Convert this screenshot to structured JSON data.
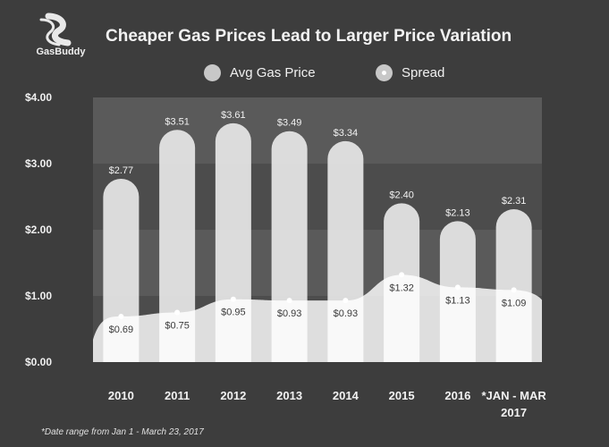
{
  "brand": {
    "name": "GasBuddy"
  },
  "chart_data": {
    "type": "bar",
    "title": "Cheaper Gas Prices Lead to Larger Price Variation",
    "categories": [
      "2010",
      "2011",
      "2012",
      "2013",
      "2014",
      "2015",
      "2016",
      "*JAN - MAR\n2017"
    ],
    "series": [
      {
        "name": "Avg Gas Price",
        "type": "bar",
        "values": [
          2.77,
          3.51,
          3.61,
          3.49,
          3.34,
          2.4,
          2.13,
          2.31
        ],
        "labels": [
          "$2.77",
          "$3.51",
          "$3.61",
          "$3.49",
          "$3.34",
          "$2.40",
          "$2.13",
          "$2.31"
        ]
      },
      {
        "name": "Spread",
        "type": "area",
        "values": [
          0.69,
          0.75,
          0.95,
          0.93,
          0.93,
          1.32,
          1.13,
          1.09
        ],
        "labels": [
          "$0.69",
          "$0.75",
          "$0.95",
          "$0.93",
          "$0.93",
          "$1.32",
          "$1.13",
          "$1.09"
        ]
      }
    ],
    "yticks": [
      "$0.00",
      "$1.00",
      "$2.00",
      "$3.00",
      "$4.00"
    ],
    "ylim": [
      0,
      4
    ],
    "legend_position": "top",
    "grid": "alternating bands"
  },
  "footnote": "*Date range from Jan 1 - March 23, 2017"
}
